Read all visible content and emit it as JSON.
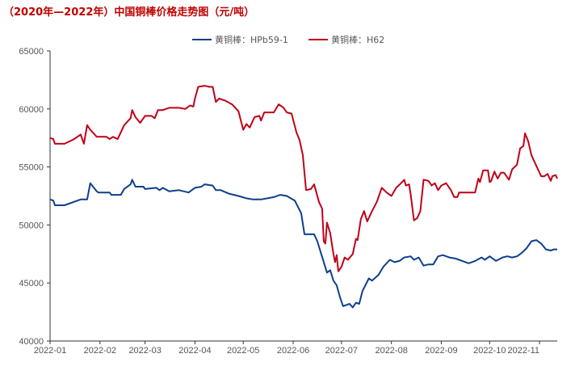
{
  "chart_data": {
    "type": "line",
    "title": "（2020年—2022年）中国铜棒价格走势图（元/吨）",
    "xlabel": "",
    "ylabel": "",
    "ylim": [
      40000,
      65000
    ],
    "xlim": [
      "2022-01-01",
      "2022-11-12"
    ],
    "yticks": [
      "40000",
      "45000",
      "50000",
      "55000",
      "60000",
      "65000"
    ],
    "xticks": [
      "2022-01",
      "2022-02",
      "2022-03",
      "2022-04",
      "2022-05",
      "2022-06",
      "2022-07",
      "2022-08",
      "2022-09",
      "2022-10",
      "2022-11"
    ],
    "grid": false,
    "legend": "top-center",
    "series": [
      {
        "name": "黄铜棒：HPb59-1",
        "color": "#0e3f8c",
        "points": [
          [
            "2022-01-01",
            52200
          ],
          [
            "2022-01-03",
            52100
          ],
          [
            "2022-01-04",
            51700
          ],
          [
            "2022-01-10",
            51700
          ],
          [
            "2022-01-20",
            52200
          ],
          [
            "2022-01-24",
            52200
          ],
          [
            "2022-01-26",
            53600
          ],
          [
            "2022-01-30",
            52900
          ],
          [
            "2022-01-31",
            52800
          ],
          [
            "2022-02-07",
            52800
          ],
          [
            "2022-02-08",
            52600
          ],
          [
            "2022-02-14",
            52600
          ],
          [
            "2022-02-16",
            53100
          ],
          [
            "2022-02-20",
            53500
          ],
          [
            "2022-02-21",
            53900
          ],
          [
            "2022-02-23",
            53300
          ],
          [
            "2022-02-28",
            53300
          ],
          [
            "2022-03-01",
            53100
          ],
          [
            "2022-03-08",
            53200
          ],
          [
            "2022-03-10",
            53000
          ],
          [
            "2022-03-12",
            53200
          ],
          [
            "2022-03-16",
            52900
          ],
          [
            "2022-03-22",
            53000
          ],
          [
            "2022-03-28",
            52800
          ],
          [
            "2022-04-01",
            53200
          ],
          [
            "2022-04-05",
            53300
          ],
          [
            "2022-04-07",
            53500
          ],
          [
            "2022-04-12",
            53400
          ],
          [
            "2022-04-14",
            53000
          ],
          [
            "2022-04-17",
            53000
          ],
          [
            "2022-04-22",
            52700
          ],
          [
            "2022-04-28",
            52500
          ],
          [
            "2022-05-03",
            52300
          ],
          [
            "2022-05-07",
            52200
          ],
          [
            "2022-05-12",
            52200
          ],
          [
            "2022-05-16",
            52300
          ],
          [
            "2022-05-20",
            52400
          ],
          [
            "2022-05-24",
            52600
          ],
          [
            "2022-05-28",
            52500
          ],
          [
            "2022-06-02",
            52100
          ],
          [
            "2022-06-06",
            51000
          ],
          [
            "2022-06-08",
            49200
          ],
          [
            "2022-06-14",
            49200
          ],
          [
            "2022-06-16",
            48600
          ],
          [
            "2022-06-18",
            47700
          ],
          [
            "2022-06-20",
            46800
          ],
          [
            "2022-06-22",
            45900
          ],
          [
            "2022-06-24",
            46100
          ],
          [
            "2022-06-26",
            45200
          ],
          [
            "2022-06-28",
            44800
          ],
          [
            "2022-06-30",
            43800
          ],
          [
            "2022-07-02",
            43000
          ],
          [
            "2022-07-06",
            43200
          ],
          [
            "2022-07-08",
            42900
          ],
          [
            "2022-07-10",
            43300
          ],
          [
            "2022-07-12",
            43200
          ],
          [
            "2022-07-14",
            44300
          ],
          [
            "2022-07-18",
            45400
          ],
          [
            "2022-07-20",
            45200
          ],
          [
            "2022-07-24",
            45700
          ],
          [
            "2022-07-27",
            46400
          ],
          [
            "2022-07-31",
            47000
          ],
          [
            "2022-08-03",
            46800
          ],
          [
            "2022-08-06",
            46900
          ],
          [
            "2022-08-09",
            47200
          ],
          [
            "2022-08-13",
            47300
          ],
          [
            "2022-08-15",
            47000
          ],
          [
            "2022-08-18",
            47200
          ],
          [
            "2022-08-21",
            46500
          ],
          [
            "2022-08-24",
            46600
          ],
          [
            "2022-08-27",
            46600
          ],
          [
            "2022-08-30",
            47300
          ],
          [
            "2022-09-02",
            47400
          ],
          [
            "2022-09-06",
            47200
          ],
          [
            "2022-09-10",
            47100
          ],
          [
            "2022-09-14",
            46900
          ],
          [
            "2022-09-18",
            46700
          ],
          [
            "2022-09-22",
            46900
          ],
          [
            "2022-09-26",
            47200
          ],
          [
            "2022-09-28",
            47000
          ],
          [
            "2022-10-01",
            47300
          ],
          [
            "2022-10-05",
            46900
          ],
          [
            "2022-10-09",
            47200
          ],
          [
            "2022-10-12",
            47300
          ],
          [
            "2022-10-15",
            47200
          ],
          [
            "2022-10-18",
            47300
          ],
          [
            "2022-10-21",
            47600
          ],
          [
            "2022-10-24",
            48000
          ],
          [
            "2022-10-27",
            48600
          ],
          [
            "2022-10-30",
            48700
          ],
          [
            "2022-11-02",
            48400
          ],
          [
            "2022-11-05",
            47900
          ],
          [
            "2022-11-08",
            47800
          ],
          [
            "2022-11-10",
            47900
          ],
          [
            "2022-11-12",
            47900
          ]
        ]
      },
      {
        "name": "黄铜棒：H62",
        "color": "#c00018",
        "points": [
          [
            "2022-01-01",
            57500
          ],
          [
            "2022-01-03",
            57400
          ],
          [
            "2022-01-04",
            57000
          ],
          [
            "2022-01-10",
            57000
          ],
          [
            "2022-01-16",
            57400
          ],
          [
            "2022-01-20",
            57800
          ],
          [
            "2022-01-22",
            57000
          ],
          [
            "2022-01-24",
            58600
          ],
          [
            "2022-01-26",
            58200
          ],
          [
            "2022-01-30",
            57600
          ],
          [
            "2022-02-05",
            57600
          ],
          [
            "2022-02-07",
            57400
          ],
          [
            "2022-02-09",
            57600
          ],
          [
            "2022-02-12",
            57400
          ],
          [
            "2022-02-16",
            58600
          ],
          [
            "2022-02-20",
            59200
          ],
          [
            "2022-02-21",
            59900
          ],
          [
            "2022-02-23",
            59300
          ],
          [
            "2022-02-26",
            58800
          ],
          [
            "2022-03-01",
            59400
          ],
          [
            "2022-03-05",
            59400
          ],
          [
            "2022-03-07",
            59200
          ],
          [
            "2022-03-09",
            59900
          ],
          [
            "2022-03-12",
            59900
          ],
          [
            "2022-03-16",
            60100
          ],
          [
            "2022-03-22",
            60100
          ],
          [
            "2022-03-26",
            60000
          ],
          [
            "2022-03-29",
            60300
          ],
          [
            "2022-03-31",
            60200
          ],
          [
            "2022-04-01",
            60900
          ],
          [
            "2022-04-03",
            61900
          ],
          [
            "2022-04-07",
            62000
          ],
          [
            "2022-04-10",
            61900
          ],
          [
            "2022-04-12",
            61900
          ],
          [
            "2022-04-14",
            60600
          ],
          [
            "2022-04-16",
            60900
          ],
          [
            "2022-04-20",
            60700
          ],
          [
            "2022-04-24",
            60400
          ],
          [
            "2022-04-28",
            59800
          ],
          [
            "2022-05-01",
            58200
          ],
          [
            "2022-05-03",
            58700
          ],
          [
            "2022-05-05",
            58400
          ],
          [
            "2022-05-08",
            59300
          ],
          [
            "2022-05-11",
            59400
          ],
          [
            "2022-05-12",
            59000
          ],
          [
            "2022-05-14",
            59700
          ],
          [
            "2022-05-20",
            59700
          ],
          [
            "2022-05-23",
            60400
          ],
          [
            "2022-05-26",
            60100
          ],
          [
            "2022-05-28",
            59700
          ],
          [
            "2022-05-31",
            59600
          ],
          [
            "2022-06-03",
            58000
          ],
          [
            "2022-06-05",
            57300
          ],
          [
            "2022-06-07",
            56000
          ],
          [
            "2022-06-09",
            53000
          ],
          [
            "2022-06-12",
            53100
          ],
          [
            "2022-06-14",
            53500
          ],
          [
            "2022-06-17",
            52000
          ],
          [
            "2022-06-19",
            51400
          ],
          [
            "2022-06-20",
            48600
          ],
          [
            "2022-06-21",
            48400
          ],
          [
            "2022-06-22",
            50200
          ],
          [
            "2022-06-24",
            49300
          ],
          [
            "2022-06-26",
            47500
          ],
          [
            "2022-06-27",
            46800
          ],
          [
            "2022-06-28",
            47400
          ],
          [
            "2022-06-29",
            46000
          ],
          [
            "2022-07-01",
            46400
          ],
          [
            "2022-07-03",
            47200
          ],
          [
            "2022-07-05",
            47000
          ],
          [
            "2022-07-08",
            47500
          ],
          [
            "2022-07-10",
            48800
          ],
          [
            "2022-07-11",
            48700
          ],
          [
            "2022-07-13",
            50500
          ],
          [
            "2022-07-15",
            51200
          ],
          [
            "2022-07-17",
            50300
          ],
          [
            "2022-07-20",
            51200
          ],
          [
            "2022-07-23",
            52000
          ],
          [
            "2022-07-26",
            53200
          ],
          [
            "2022-07-29",
            52800
          ],
          [
            "2022-08-01",
            52500
          ],
          [
            "2022-08-04",
            53200
          ],
          [
            "2022-08-07",
            53600
          ],
          [
            "2022-08-09",
            53900
          ],
          [
            "2022-08-10",
            53400
          ],
          [
            "2022-08-12",
            53500
          ],
          [
            "2022-08-13",
            52600
          ],
          [
            "2022-08-15",
            50400
          ],
          [
            "2022-08-17",
            50600
          ],
          [
            "2022-08-19",
            51200
          ],
          [
            "2022-08-21",
            53900
          ],
          [
            "2022-08-24",
            53800
          ],
          [
            "2022-08-26",
            53400
          ],
          [
            "2022-08-28",
            53600
          ],
          [
            "2022-08-30",
            53000
          ],
          [
            "2022-09-01",
            53400
          ],
          [
            "2022-09-04",
            53600
          ],
          [
            "2022-09-07",
            53000
          ],
          [
            "2022-09-09",
            52400
          ],
          [
            "2022-09-11",
            52400
          ],
          [
            "2022-09-12",
            52800
          ],
          [
            "2022-09-19",
            52800
          ],
          [
            "2022-09-22",
            52800
          ],
          [
            "2022-09-24",
            54000
          ],
          [
            "2022-09-25",
            53700
          ],
          [
            "2022-09-27",
            54700
          ],
          [
            "2022-09-30",
            54700
          ],
          [
            "2022-10-01",
            53700
          ],
          [
            "2022-10-02",
            53800
          ],
          [
            "2022-10-04",
            54600
          ],
          [
            "2022-10-06",
            54000
          ],
          [
            "2022-10-08",
            54500
          ],
          [
            "2022-10-10",
            54500
          ],
          [
            "2022-10-13",
            53900
          ],
          [
            "2022-10-15",
            54800
          ],
          [
            "2022-10-18",
            55200
          ],
          [
            "2022-10-20",
            56600
          ],
          [
            "2022-10-22",
            56800
          ],
          [
            "2022-10-23",
            57900
          ],
          [
            "2022-10-25",
            57200
          ],
          [
            "2022-10-27",
            56000
          ],
          [
            "2022-10-30",
            55100
          ],
          [
            "2022-11-02",
            54200
          ],
          [
            "2022-11-04",
            54200
          ],
          [
            "2022-11-06",
            54400
          ],
          [
            "2022-11-08",
            53800
          ],
          [
            "2022-11-09",
            54200
          ],
          [
            "2022-11-11",
            54300
          ],
          [
            "2022-11-12",
            54000
          ]
        ]
      }
    ]
  }
}
